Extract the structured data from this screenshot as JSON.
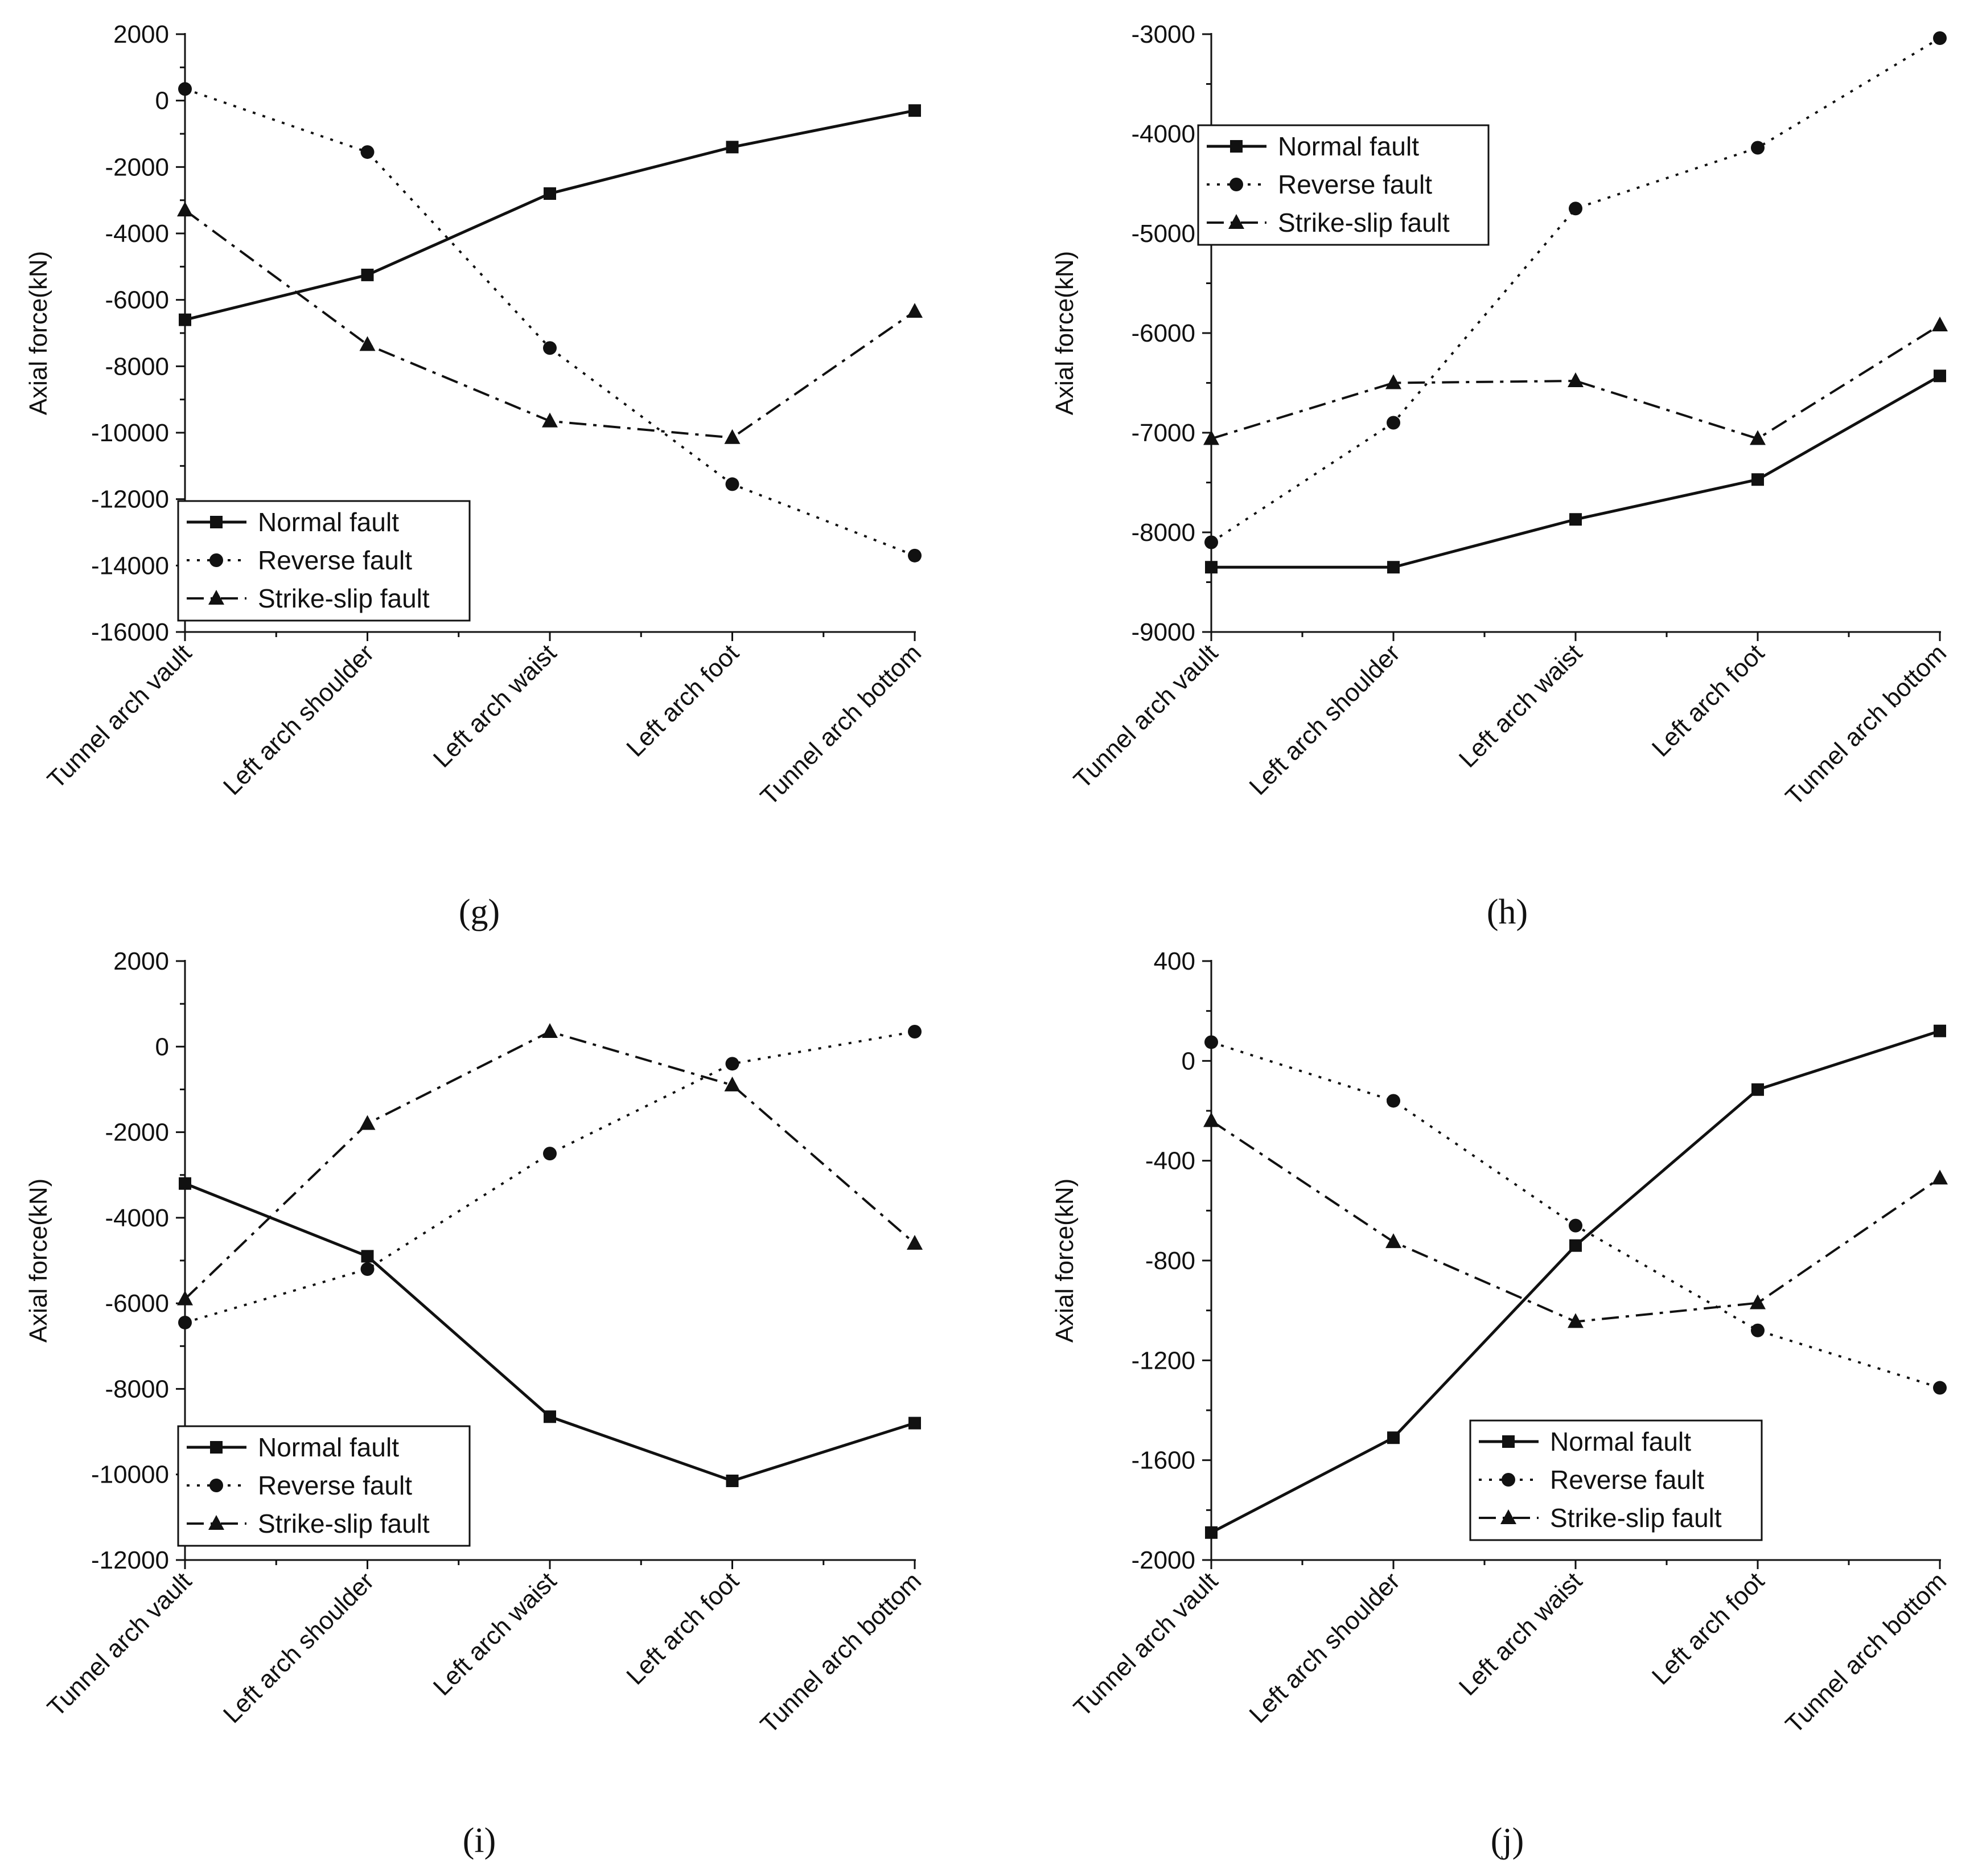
{
  "figure": {
    "panel_labels": [
      "(g)",
      "(h)",
      "(i)",
      "(j)"
    ]
  },
  "chart_data": [
    {
      "type": "line",
      "panel": "(g)",
      "title": "",
      "xlabel": "",
      "ylabel": "Axial force(kN)",
      "categories": [
        "Tunnel arch vault",
        "Left arch shoulder",
        "Left arch waist",
        "Left arch foot",
        "Tunnel arch bottom"
      ],
      "ylim": [
        -16000,
        2000
      ],
      "yticks": [
        2000,
        0,
        -2000,
        -4000,
        -6000,
        -8000,
        -10000,
        -12000,
        -14000,
        -16000
      ],
      "legend_position": "bottom-left",
      "series": [
        {
          "name": "Normal fault",
          "style": "solid",
          "marker": "square",
          "values": [
            -6600,
            -5250,
            -2800,
            -1400,
            -300
          ]
        },
        {
          "name": "Reverse fault",
          "style": "dotted",
          "marker": "circle",
          "values": [
            350,
            -1550,
            -7450,
            -11550,
            -13700
          ]
        },
        {
          "name": "Strike-slip fault",
          "style": "dashdot",
          "marker": "triangle",
          "values": [
            -3300,
            -7350,
            -9650,
            -10150,
            -6350
          ]
        }
      ]
    },
    {
      "type": "line",
      "panel": "(h)",
      "title": "",
      "xlabel": "",
      "ylabel": "Axial force(kN)",
      "categories": [
        "Tunnel arch vault",
        "Left arch shoulder",
        "Left arch waist",
        "Left arch foot",
        "Tunnel arch bottom"
      ],
      "ylim": [
        -9000,
        -3000
      ],
      "yticks": [
        -3000,
        -4000,
        -5000,
        -6000,
        -7000,
        -8000,
        -9000
      ],
      "legend_position": "top-left",
      "series": [
        {
          "name": "Normal fault",
          "style": "solid",
          "marker": "square",
          "values": [
            -8350,
            -8350,
            -7870,
            -7470,
            -6430
          ]
        },
        {
          "name": "Reverse fault",
          "style": "dotted",
          "marker": "circle",
          "values": [
            -8100,
            -6900,
            -4750,
            -4140,
            -3040
          ]
        },
        {
          "name": "Strike-slip fault",
          "style": "dashdot",
          "marker": "triangle",
          "values": [
            -7060,
            -6500,
            -6480,
            -7060,
            -5920
          ]
        }
      ]
    },
    {
      "type": "line",
      "panel": "(i)",
      "title": "",
      "xlabel": "",
      "ylabel": "Axial force(kN)",
      "categories": [
        "Tunnel arch vault",
        "Left arch shoulder",
        "Left arch waist",
        "Left arch foot",
        "Tunnel arch bottom"
      ],
      "ylim": [
        -12000,
        2000
      ],
      "yticks": [
        2000,
        0,
        -2000,
        -4000,
        -6000,
        -8000,
        -10000,
        -12000
      ],
      "legend_position": "bottom-left",
      "series": [
        {
          "name": "Normal fault",
          "style": "solid",
          "marker": "square",
          "values": [
            -3200,
            -4900,
            -8650,
            -10150,
            -8800
          ]
        },
        {
          "name": "Reverse fault",
          "style": "dotted",
          "marker": "circle",
          "values": [
            -6450,
            -5200,
            -2500,
            -400,
            350
          ]
        },
        {
          "name": "Strike-slip fault",
          "style": "dashdot",
          "marker": "triangle",
          "values": [
            -5900,
            -1800,
            350,
            -900,
            -4600
          ]
        }
      ]
    },
    {
      "type": "line",
      "panel": "(j)",
      "title": "",
      "xlabel": "",
      "ylabel": "Axial force(kN)",
      "categories": [
        "Tunnel arch vault",
        "Left arch shoulder",
        "Left arch waist",
        "Left arch foot",
        "Tunnel arch bottom"
      ],
      "ylim": [
        -2000,
        400
      ],
      "yticks": [
        400,
        0,
        -400,
        -800,
        -1200,
        -1600,
        -2000
      ],
      "legend_position": "bottom-right",
      "series": [
        {
          "name": "Normal fault",
          "style": "solid",
          "marker": "square",
          "values": [
            -1890,
            -1510,
            -740,
            -115,
            120
          ]
        },
        {
          "name": "Reverse fault",
          "style": "dotted",
          "marker": "circle",
          "values": [
            75,
            -160,
            -660,
            -1080,
            -1310
          ]
        },
        {
          "name": "Strike-slip fault",
          "style": "dashdot",
          "marker": "triangle",
          "values": [
            -240,
            -725,
            -1045,
            -970,
            -470
          ]
        }
      ]
    }
  ]
}
